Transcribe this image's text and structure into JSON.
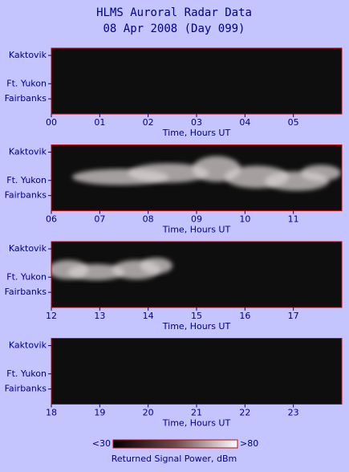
{
  "header": {
    "title": "HLMS Auroral Radar Data",
    "subtitle": "08 Apr 2008 (Day 099)"
  },
  "chart_data": [
    {
      "type": "heatmap",
      "xlabel": "Time, Hours UT",
      "xlim": [
        0,
        6
      ],
      "xticks": [
        {
          "value": 0,
          "label": "00"
        },
        {
          "value": 1,
          "label": "01"
        },
        {
          "value": 2,
          "label": "02"
        },
        {
          "value": 3,
          "label": "03"
        },
        {
          "value": 4,
          "label": "04"
        },
        {
          "value": 5,
          "label": "05"
        }
      ],
      "ycategories": [
        "Kaktovik",
        "Ft. Yukon",
        "Fairbanks"
      ]
    },
    {
      "type": "heatmap",
      "xlabel": "Time, Hours UT",
      "xlim": [
        6,
        12
      ],
      "xticks": [
        {
          "value": 6,
          "label": "06"
        },
        {
          "value": 7,
          "label": "07"
        },
        {
          "value": 8,
          "label": "08"
        },
        {
          "value": 9,
          "label": "09"
        },
        10,
        11
      ],
      "ycategories": [
        "Kaktovik",
        "Ft. Yukon",
        "Fairbanks"
      ]
    },
    {
      "type": "heatmap",
      "xlabel": "Time, Hours UT",
      "xlim": [
        12,
        18
      ],
      "xticks": [
        12,
        13,
        14,
        15,
        16,
        17
      ],
      "ycategories": [
        "Kaktovik",
        "Ft. Yukon",
        "Fairbanks"
      ]
    },
    {
      "type": "heatmap",
      "xlabel": "Time, Hours UT",
      "xlim": [
        18,
        24
      ],
      "xticks": [
        18,
        19,
        20,
        21,
        22,
        23
      ],
      "ycategories": [
        "Kaktovik",
        "Ft. Yukon",
        "Fairbanks"
      ]
    }
  ],
  "colorbar": {
    "label": "Returned Signal Power, dBm",
    "lim": [
      30,
      80
    ],
    "ticks": [
      {
        "value": 30,
        "label": "<30"
      },
      {
        "value": 80,
        "label": ">80"
      }
    ]
  }
}
